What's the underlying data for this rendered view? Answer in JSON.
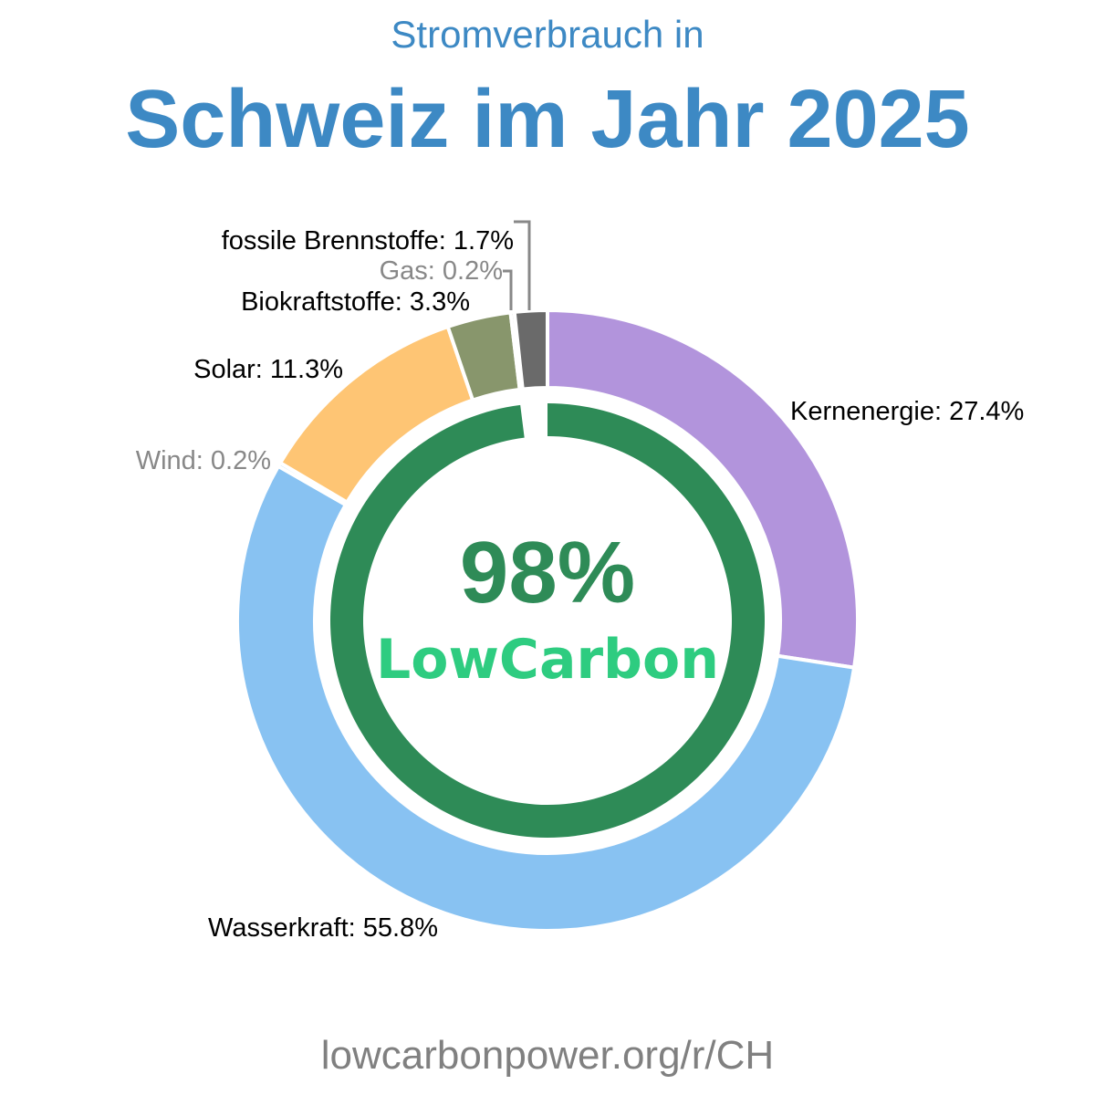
{
  "header": {
    "subtitle": "Stromverbrauch in",
    "title": "Schweiz im Jahr 2025"
  },
  "center": {
    "percent": "98%",
    "label": "LowCarbon",
    "low_carbon_share": 0.98
  },
  "footer": {
    "url": "lowcarbonpower.org/r/CH"
  },
  "colors": {
    "title": "#3d89c4",
    "inner_ring": "#2e8b57",
    "lowcarbon_text": "#2ecc80",
    "footer": "#808080"
  },
  "chart_data": {
    "type": "pie",
    "title": "Schweiz im Jahr 2025",
    "subtitle": "Stromverbrauch in",
    "slices": [
      {
        "name": "Kernenergie",
        "value": 27.4,
        "label": "Kernenergie: 27.4%",
        "color": "#b294dc",
        "label_color": "#000000"
      },
      {
        "name": "Wasserkraft",
        "value": 55.8,
        "label": "Wasserkraft: 55.8%",
        "color": "#88c2f2",
        "label_color": "#000000"
      },
      {
        "name": "Wind",
        "value": 0.2,
        "label": "Wind: 0.2%",
        "color": "#88c2f2",
        "label_color": "#888888"
      },
      {
        "name": "Solar",
        "value": 11.3,
        "label": "Solar: 11.3%",
        "color": "#fec574",
        "label_color": "#000000"
      },
      {
        "name": "Biokraftstoffe",
        "value": 3.3,
        "label": "Biokraftstoffe: 3.3%",
        "color": "#88966c",
        "label_color": "#000000"
      },
      {
        "name": "Gas",
        "value": 0.2,
        "label": "Gas: 0.2%",
        "color": "#d0d0d0",
        "label_color": "#888888"
      },
      {
        "name": "fossile Brennstoffe",
        "value": 1.7,
        "label": "fossile Brennstoffe: 1.7%",
        "color": "#6a6a6a",
        "label_color": "#000000"
      }
    ]
  }
}
